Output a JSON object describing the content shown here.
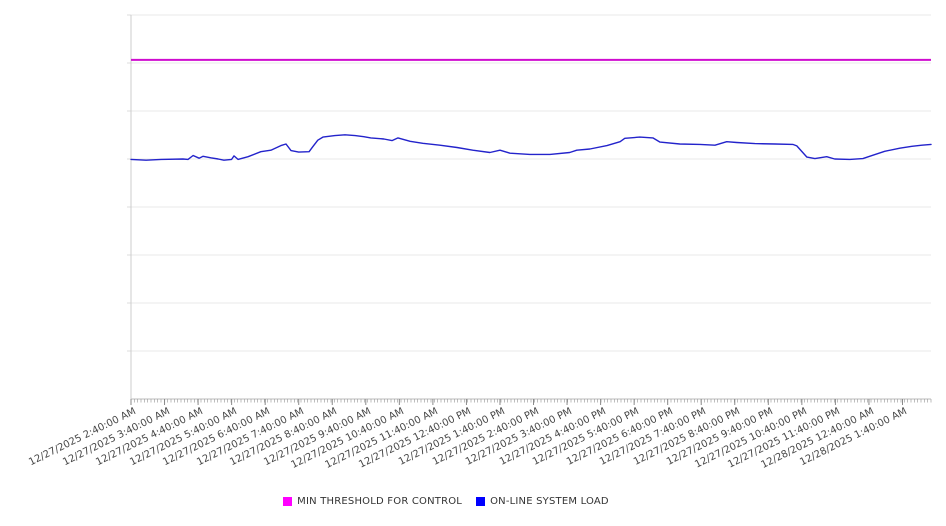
{
  "chart_data": {
    "type": "line",
    "title": "",
    "xlabel": "",
    "ylabel": "",
    "x_axis": {
      "labels": [
        "12/27/2025 2:40:00 AM",
        "12/27/2025 3:40:00 AM",
        "12/27/2025 4:40:00 AM",
        "12/27/2025 5:40:00 AM",
        "12/27/2025 6:40:00 AM",
        "12/27/2025 7:40:00 AM",
        "12/27/2025 8:40:00 AM",
        "12/27/2025 9:40:00 AM",
        "12/27/2025 10:40:00 AM",
        "12/27/2025 11:40:00 AM",
        "12/27/2025 12:40:00 PM",
        "12/27/2025 1:40:00 PM",
        "12/27/2025 2:40:00 PM",
        "12/27/2025 3:40:00 PM",
        "12/27/2025 4:40:00 PM",
        "12/27/2025 5:40:00 PM",
        "12/27/2025 6:40:00 PM",
        "12/27/2025 7:40:00 PM",
        "12/27/2025 8:40:00 PM",
        "12/27/2025 9:40:00 PM",
        "12/27/2025 10:40:00 PM",
        "12/27/2025 11:40:00 PM",
        "12/28/2025 12:40:00 AM",
        "12/28/2025 1:40:00 AM"
      ],
      "range_hours": [
        0,
        23.85
      ],
      "minor_ticks": 240
    },
    "y_axis": {
      "labels_visible": false,
      "range": [
        0,
        100
      ],
      "gridline_count": 9,
      "grid": "on"
    },
    "legend_position": "bottom-center",
    "series": [
      {
        "name": "MIN THRESHOLD FOR CONTROL",
        "type": "threshold-line",
        "color": "#cf0ccf",
        "value": 88.3
      },
      {
        "name": "ON-LINE SYSTEM LOAD",
        "type": "line",
        "color": "#2323cb",
        "points": [
          [
            0.0,
            62.4
          ],
          [
            0.45,
            62.2
          ],
          [
            0.9,
            62.4
          ],
          [
            1.55,
            62.5
          ],
          [
            1.7,
            62.4
          ],
          [
            1.85,
            63.4
          ],
          [
            2.03,
            62.7
          ],
          [
            2.15,
            63.2
          ],
          [
            2.38,
            62.8
          ],
          [
            2.6,
            62.5
          ],
          [
            2.77,
            62.2
          ],
          [
            3.0,
            62.4
          ],
          [
            3.07,
            63.3
          ],
          [
            3.19,
            62.4
          ],
          [
            3.49,
            63.1
          ],
          [
            3.87,
            64.4
          ],
          [
            4.17,
            64.8
          ],
          [
            4.47,
            66.0
          ],
          [
            4.62,
            66.4
          ],
          [
            4.77,
            64.7
          ],
          [
            5.0,
            64.3
          ],
          [
            5.31,
            64.4
          ],
          [
            5.42,
            65.7
          ],
          [
            5.57,
            67.4
          ],
          [
            5.72,
            68.2
          ],
          [
            6.08,
            68.6
          ],
          [
            6.38,
            68.8
          ],
          [
            6.68,
            68.6
          ],
          [
            6.94,
            68.3
          ],
          [
            7.15,
            68.0
          ],
          [
            7.54,
            67.7
          ],
          [
            7.78,
            67.3
          ],
          [
            7.96,
            68.0
          ],
          [
            8.32,
            67.1
          ],
          [
            8.7,
            66.6
          ],
          [
            9.21,
            66.1
          ],
          [
            9.72,
            65.5
          ],
          [
            10.19,
            64.8
          ],
          [
            10.7,
            64.2
          ],
          [
            11.0,
            64.8
          ],
          [
            11.3,
            64.0
          ],
          [
            11.89,
            63.7
          ],
          [
            12.49,
            63.7
          ],
          [
            13.08,
            64.2
          ],
          [
            13.29,
            64.8
          ],
          [
            13.68,
            65.1
          ],
          [
            14.19,
            66.0
          ],
          [
            14.58,
            67.0
          ],
          [
            14.72,
            67.9
          ],
          [
            15.17,
            68.2
          ],
          [
            15.56,
            68.0
          ],
          [
            15.77,
            66.9
          ],
          [
            16.36,
            66.4
          ],
          [
            16.96,
            66.3
          ],
          [
            17.41,
            66.1
          ],
          [
            17.76,
            67.0
          ],
          [
            18.06,
            66.8
          ],
          [
            18.6,
            66.5
          ],
          [
            19.2,
            66.4
          ],
          [
            19.73,
            66.3
          ],
          [
            19.85,
            65.9
          ],
          [
            20.15,
            63.0
          ],
          [
            20.39,
            62.6
          ],
          [
            20.74,
            63.1
          ],
          [
            20.98,
            62.5
          ],
          [
            21.43,
            62.4
          ],
          [
            21.82,
            62.6
          ],
          [
            22.12,
            63.5
          ],
          [
            22.47,
            64.5
          ],
          [
            22.92,
            65.3
          ],
          [
            23.28,
            65.8
          ],
          [
            23.58,
            66.1
          ],
          [
            23.85,
            66.3
          ]
        ]
      }
    ]
  },
  "legend": {
    "items": [
      {
        "label": "MIN THRESHOLD FOR CONTROL",
        "color": "#ff00ff"
      },
      {
        "label": "ON-LINE SYSTEM LOAD",
        "color": "#0000ff"
      }
    ]
  }
}
